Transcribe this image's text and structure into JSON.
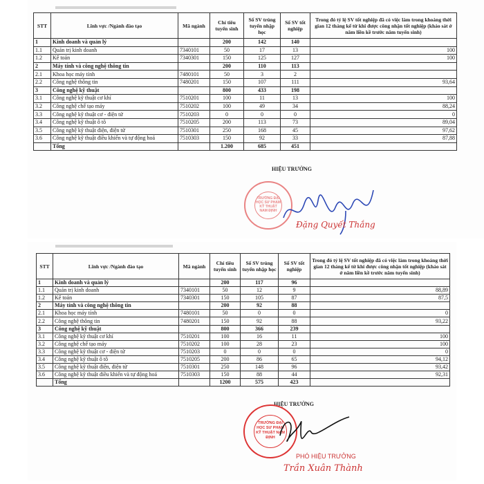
{
  "headers": [
    "STT",
    "Lĩnh vực /Ngành đào tạo",
    "Mã ngành",
    "Chỉ tiêu tuyển sinh",
    "Số SV trúng tuyển nhập học",
    "Số SV tốt nghiệp",
    "Trong đó tỷ lệ SV tốt nghiệp đã có việc làm trong khoảng thời gian 12 tháng kể từ khi được công nhận tốt nghiệp (khảo sát ở năm liền kề trước năm tuyển sinh)"
  ],
  "table1": {
    "rows": [
      {
        "stt": "1",
        "name": "Kinh doanh và quản lý",
        "code": "",
        "quota": "200",
        "admitted": "142",
        "graduated": "140",
        "rate": "",
        "group": true
      },
      {
        "stt": "1.1",
        "name": "Quản trị kinh doanh",
        "code": "7340101",
        "quota": "50",
        "admitted": "17",
        "graduated": "13",
        "rate": "100"
      },
      {
        "stt": "1.2",
        "name": "Kế toán",
        "code": "7340301",
        "quota": "150",
        "admitted": "125",
        "graduated": "127",
        "rate": "100"
      },
      {
        "stt": "2",
        "name": "Máy tính và công nghệ thông tin",
        "code": "",
        "quota": "200",
        "admitted": "110",
        "graduated": "113",
        "rate": "",
        "group": true
      },
      {
        "stt": "2.1",
        "name": "Khoa học máy tính",
        "code": "7480101",
        "quota": "50",
        "admitted": "3",
        "graduated": "2",
        "rate": ""
      },
      {
        "stt": "2.2",
        "name": "Công nghệ thông tin",
        "code": "7480201",
        "quota": "150",
        "admitted": "107",
        "graduated": "111",
        "rate": "93,64"
      },
      {
        "stt": "3",
        "name": "Công nghệ kỹ thuật",
        "code": "",
        "quota": "800",
        "admitted": "433",
        "graduated": "198",
        "rate": "",
        "group": true
      },
      {
        "stt": "3.1",
        "name": "Công nghệ kỹ thuật cơ khí",
        "code": "7510201",
        "quota": "100",
        "admitted": "11",
        "graduated": "13",
        "rate": "100"
      },
      {
        "stt": "3.2",
        "name": "Công nghệ chế tạo máy",
        "code": "7510202",
        "quota": "100",
        "admitted": "49",
        "graduated": "34",
        "rate": "88,24"
      },
      {
        "stt": "3.3",
        "name": "Công nghệ kỹ thuật cơ - điện tử",
        "code": "7510203",
        "quota": "0",
        "admitted": "0",
        "graduated": "0",
        "rate": "0"
      },
      {
        "stt": "3.4",
        "name": "Công nghệ kỹ thuật ô tô",
        "code": "7510205",
        "quota": "200",
        "admitted": "113",
        "graduated": "73",
        "rate": "89,04"
      },
      {
        "stt": "3.5",
        "name": "Công nghệ kỹ thuật điện, điện tử",
        "code": "7510301",
        "quota": "250",
        "admitted": "168",
        "graduated": "45",
        "rate": "97,62"
      },
      {
        "stt": "3.6",
        "name": "Công nghệ kỹ thuật điều khiển và tự động hoá",
        "code": "7510303",
        "quota": "150",
        "admitted": "92",
        "graduated": "33",
        "rate": "87,88"
      },
      {
        "stt": "",
        "name": "Tổng",
        "code": "",
        "quota": "1.200",
        "admitted": "685",
        "graduated": "451",
        "rate": "",
        "group": true
      }
    ],
    "signature": {
      "title": "HIỆU TRƯỞNG",
      "name": "Đặng Quyết Thắng",
      "stamp": "TRƯỜNG ĐẠI HỌC SƯ PHẠM KỸ THUẬT NAM ĐỊNH"
    }
  },
  "table2": {
    "rows": [
      {
        "stt": "1",
        "name": "Kinh doanh và quản lý",
        "code": "",
        "quota": "200",
        "admitted": "117",
        "graduated": "96",
        "rate": "",
        "group": true
      },
      {
        "stt": "1.1",
        "name": "Quản trị kinh doanh",
        "code": "7340101",
        "quota": "50",
        "admitted": "12",
        "graduated": "9",
        "rate": "88,89"
      },
      {
        "stt": "1.2",
        "name": "Kế toán",
        "code": "7340301",
        "quota": "150",
        "admitted": "105",
        "graduated": "87",
        "rate": "87,5"
      },
      {
        "stt": "2",
        "name": "Máy tính và công nghệ thông tin",
        "code": "",
        "quota": "200",
        "admitted": "92",
        "graduated": "88",
        "rate": "",
        "group": true
      },
      {
        "stt": "2.1",
        "name": "Khoa học máy tính",
        "code": "7480101",
        "quota": "50",
        "admitted": "0",
        "graduated": "0",
        "rate": "0"
      },
      {
        "stt": "2.2",
        "name": "Công nghệ thông tin",
        "code": "7480201",
        "quota": "150",
        "admitted": "92",
        "graduated": "88",
        "rate": "93,22"
      },
      {
        "stt": "3",
        "name": "Công nghệ kỹ thuật",
        "code": "",
        "quota": "800",
        "admitted": "366",
        "graduated": "239",
        "rate": "",
        "group": true
      },
      {
        "stt": "3.1",
        "name": "Công nghệ kỹ thuật cơ khí",
        "code": "7510201",
        "quota": "100",
        "admitted": "16",
        "graduated": "11",
        "rate": "100"
      },
      {
        "stt": "3.2",
        "name": "Công nghệ chế tạo máy",
        "code": "7510202",
        "quota": "100",
        "admitted": "28",
        "graduated": "23",
        "rate": "100"
      },
      {
        "stt": "3.3",
        "name": "Công nghệ kỹ thuật cơ - điện tử",
        "code": "7510203",
        "quota": "0",
        "admitted": "0",
        "graduated": "0",
        "rate": "0"
      },
      {
        "stt": "3.4",
        "name": "Công nghệ kỹ thuật ô tô",
        "code": "7510205",
        "quota": "200",
        "admitted": "86",
        "graduated": "65",
        "rate": "94,12"
      },
      {
        "stt": "3.5",
        "name": "Công nghệ kỹ thuật điện, điện tử",
        "code": "7510301",
        "quota": "250",
        "admitted": "148",
        "graduated": "96",
        "rate": "93,42"
      },
      {
        "stt": "3.6",
        "name": "Công nghệ kỹ thuật điều khiển và tự động hoá",
        "code": "7510303",
        "quota": "150",
        "admitted": "88",
        "graduated": "44",
        "rate": "92,31"
      },
      {
        "stt": "",
        "name": "Tổng",
        "code": "",
        "quota": "1200",
        "admitted": "575",
        "graduated": "423",
        "rate": "",
        "group": true
      }
    ],
    "signature": {
      "title": "HIỆU TRƯỞNG",
      "role": "PHÓ HIỆU TRƯỞNG",
      "name": "Trần Xuân Thành",
      "stamp": "TRƯỜNG ĐẠI HỌC SƯ PHẠM KỸ THUẬT NAM ĐỊNH"
    }
  }
}
